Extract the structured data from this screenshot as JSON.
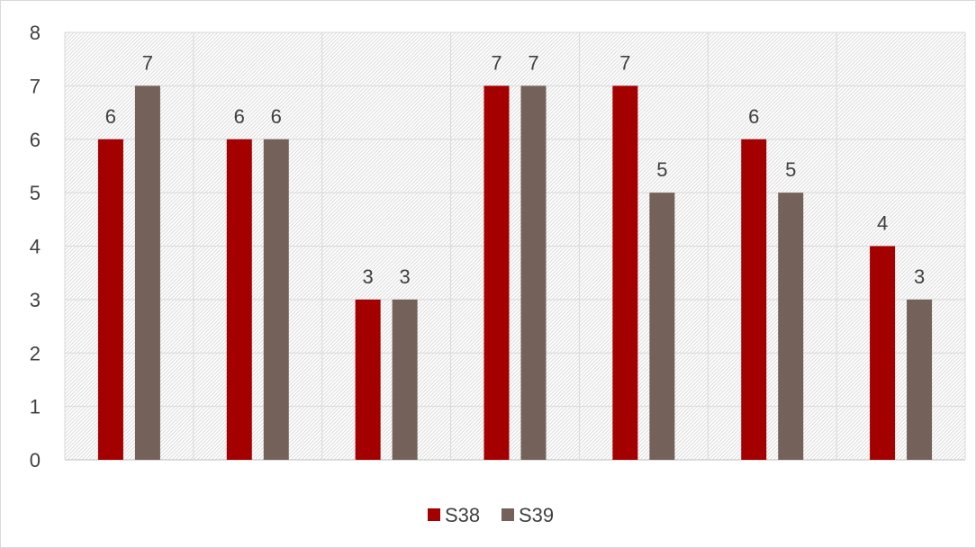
{
  "chart_data": {
    "type": "bar",
    "title": "",
    "xlabel": "",
    "ylabel": "",
    "categories": [
      "",
      "",
      "",
      "",
      "",
      "",
      ""
    ],
    "series": [
      {
        "name": "S38",
        "color": "#a50000",
        "values": [
          6,
          6,
          3,
          7,
          7,
          6,
          4
        ]
      },
      {
        "name": "S39",
        "color": "#74625a",
        "values": [
          7,
          6,
          3,
          7,
          5,
          5,
          3
        ]
      }
    ],
    "ylim": [
      0,
      8
    ],
    "yticks": [
      "0",
      "1",
      "2",
      "3",
      "4",
      "5",
      "6",
      "7",
      "8"
    ],
    "grid": true,
    "plot_background": "diagonal hatch",
    "data_labels": true,
    "legend_position": "bottom"
  }
}
